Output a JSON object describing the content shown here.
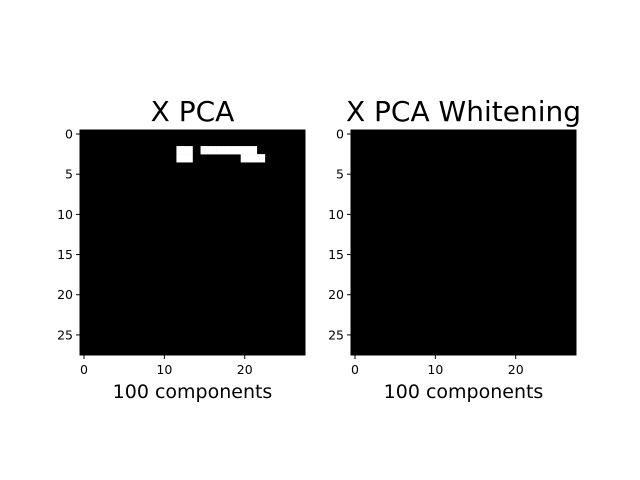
{
  "chart_data": [
    {
      "type": "heatmap",
      "title": "X PCA",
      "xlabel": "100 components",
      "ylabel": "",
      "xticks": [
        0,
        10,
        20
      ],
      "yticks": [
        0,
        5,
        10,
        15,
        20,
        25
      ],
      "xlim": [
        -0.5,
        27.5
      ],
      "ylim": [
        27.5,
        -0.5
      ],
      "colormap": "binary (0 = black, 1 = white)",
      "grid": false,
      "rows": [
        "0000000000000000000000000000",
        "0000000000000000000000000000",
        "0000000000001101111111000000",
        "0000000000001100000011100000",
        "0000000000000000000000000000",
        "0000000000000000000000000000",
        "0000000000000000000000000000",
        "0000000000000000000000000000",
        "0000000000000000000000000000",
        "0000000000000000000000000000",
        "0000000000000000000000000000",
        "0000000000000000000000000000",
        "0000000000000000000000000000",
        "0000000000000000000000000000",
        "0000000000000000000000000000",
        "0000000000000000000000000000",
        "0000000000000000000000000000",
        "0000000000000000000000000000",
        "0000000000000000000000000000",
        "0000000000000000000000000000",
        "0000000000000000000000000000",
        "0000000000000000000000000000",
        "0000000000000000000000000000",
        "0000000000000000000000000000",
        "0000000000000000000000000000",
        "0000000000000000000000000000",
        "0000000000000000000000000000",
        "0000000000000000000000000000"
      ]
    },
    {
      "type": "heatmap",
      "title": "X PCA Whitening",
      "xlabel": "100 components",
      "ylabel": "",
      "xticks": [
        0,
        10,
        20
      ],
      "yticks": [
        0,
        5,
        10,
        15,
        20,
        25
      ],
      "xlim": [
        -0.5,
        27.5
      ],
      "ylim": [
        27.5,
        -0.5
      ],
      "colormap": "binary (0 = black, 1 = white)",
      "grid": false,
      "rows": [
        "0000000000000000000000000000",
        "0000000000000000000000000000",
        "0000000000000000000000000000",
        "0000000000000000000000000000",
        "0000000000000000000000000000",
        "0000000000000000000000000000",
        "0000000000000000000000000000",
        "0000000000000000000000000000",
        "0000000000000000000000000000",
        "0000000000000000000000000000",
        "0000000000000000000000000000",
        "0000000000000000000000000000",
        "0000000000000000000000000000",
        "0000000000000000000000000000",
        "0000000000000000000000000000",
        "0000000000000000000000000000",
        "0000000000000000000000000000",
        "0000000000000000000000000000",
        "0000000000000000000000000000",
        "0000000000000000000000000000",
        "0000000000000000000000000000",
        "0000000000000000000000000000",
        "0000000000000000000000000000",
        "0000000000000000000000000000",
        "0000000000000000000000000000",
        "0000000000000000000000000000",
        "0000000000000000000000000000",
        "0000000000000000000000000000"
      ]
    }
  ]
}
